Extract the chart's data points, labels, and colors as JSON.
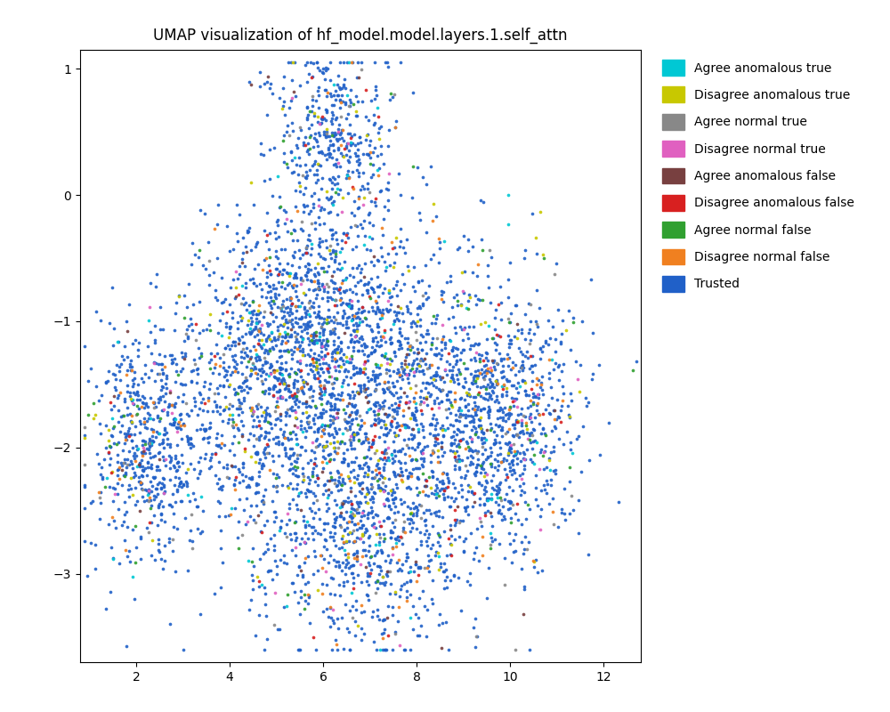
{
  "title": "UMAP visualization of hf_model.model.layers.1.self_attn",
  "xlim": [
    0.8,
    12.8
  ],
  "ylim": [
    -3.7,
    1.15
  ],
  "xticks": [
    2,
    4,
    6,
    8,
    10,
    12
  ],
  "yticks": [
    1,
    0,
    -1,
    -2,
    -3
  ],
  "categories": [
    "Agree anomalous true",
    "Disagree anomalous true",
    "Agree normal true",
    "Disagree normal true",
    "Agree anomalous false",
    "Disagree anomalous false",
    "Agree normal false",
    "Disagree normal false",
    "Trusted"
  ],
  "colors": [
    "#00c8d4",
    "#c8c800",
    "#888888",
    "#e060c0",
    "#784040",
    "#d82020",
    "#30a030",
    "#f08020",
    "#2060c8"
  ],
  "cat_probs": [
    0.022,
    0.032,
    0.028,
    0.018,
    0.016,
    0.02,
    0.026,
    0.032,
    0.806
  ],
  "total_points": 5500,
  "seed": 42,
  "figsize": [
    10.0,
    8.0
  ],
  "dpi": 100,
  "marker_size": 7,
  "alpha": 0.9,
  "background_color": "white"
}
